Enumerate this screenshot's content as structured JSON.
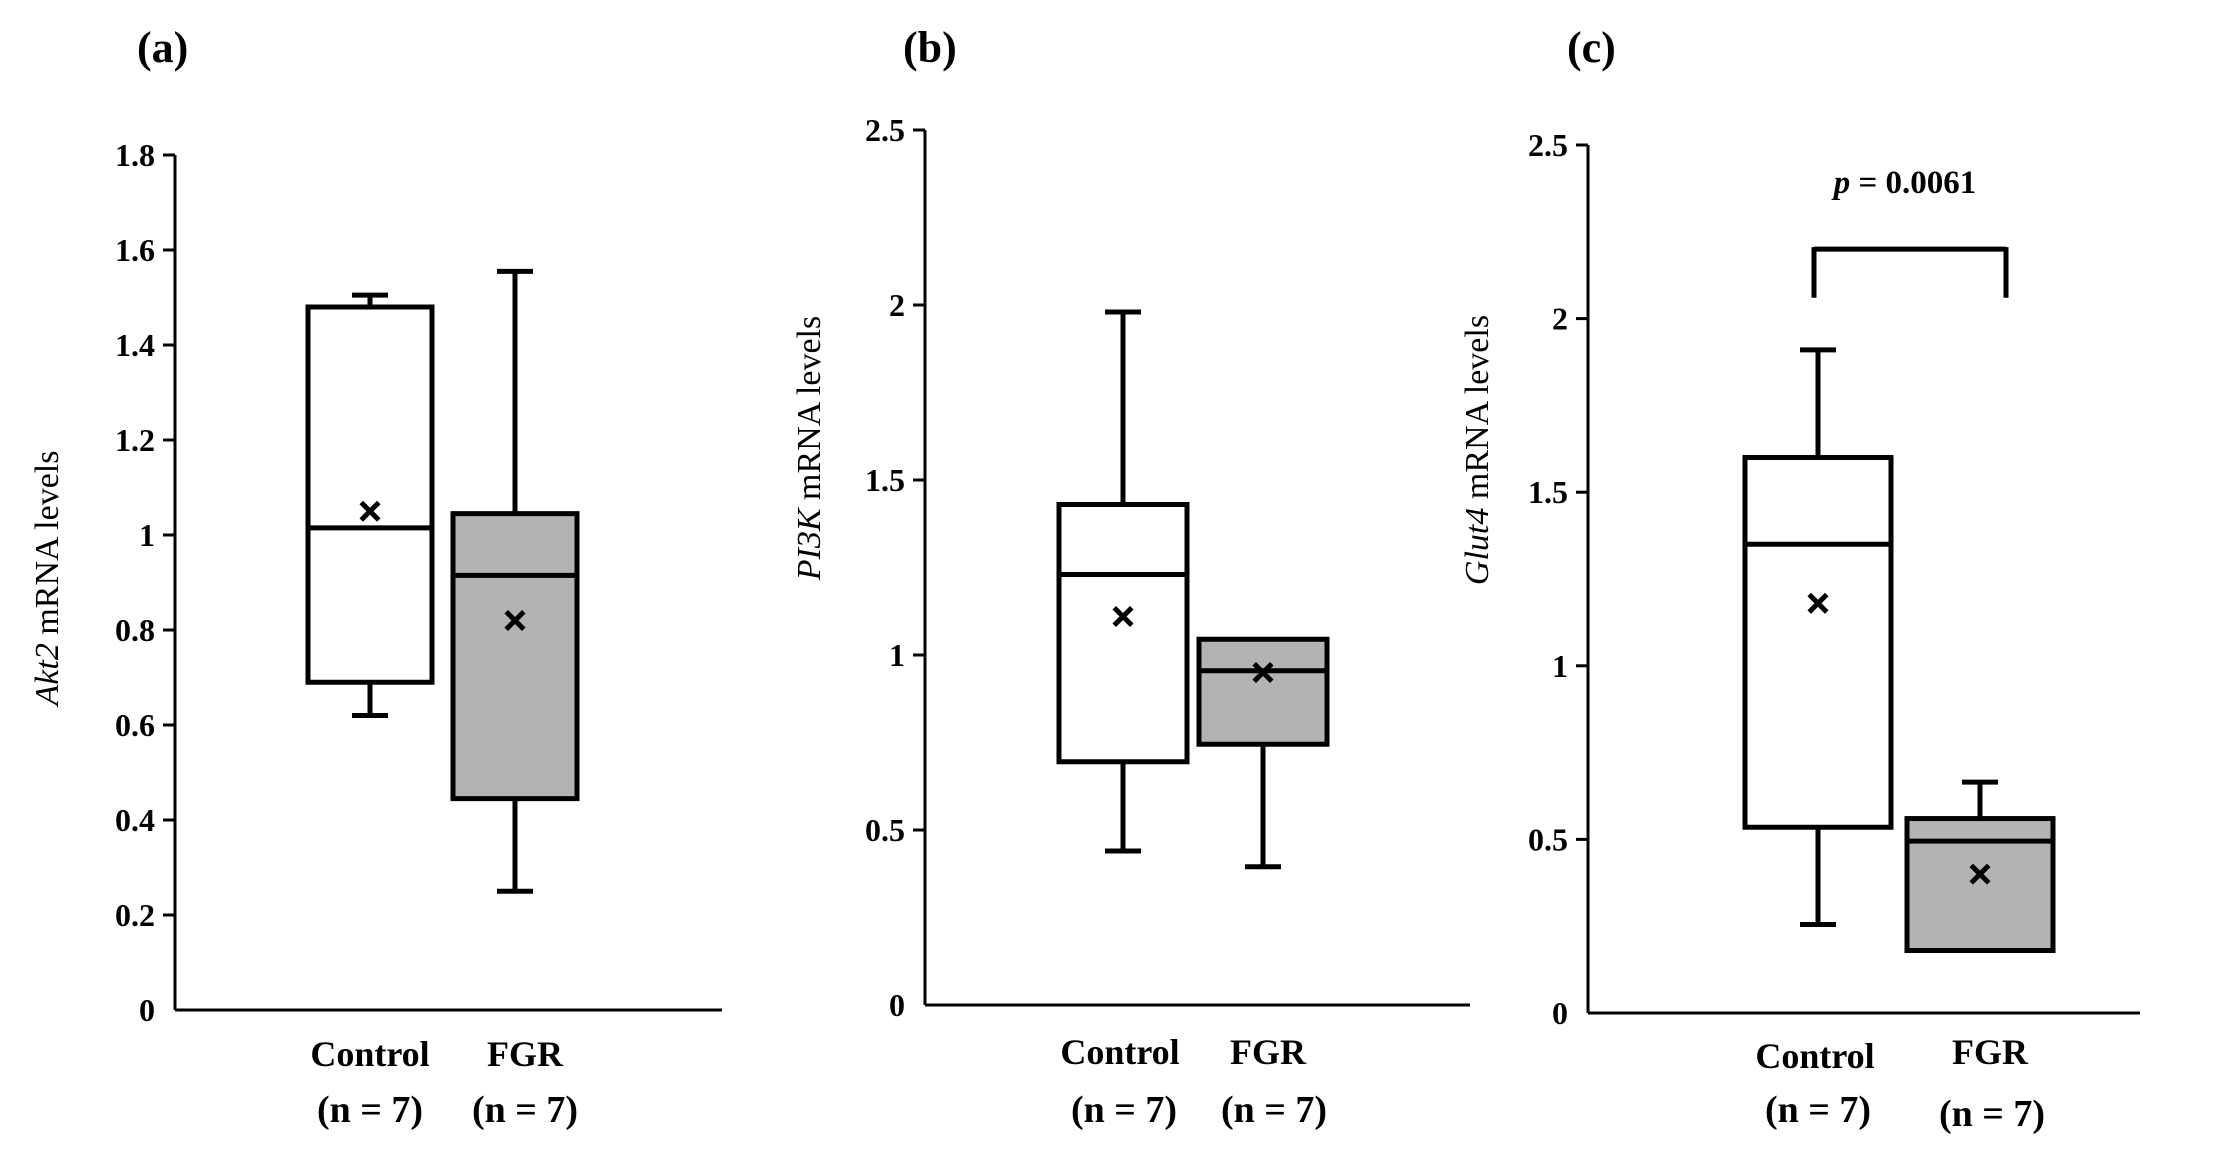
{
  "chart_data": [
    {
      "type": "box",
      "panel_label": "(a)",
      "ylabel_gene": "Akt2",
      "ylabel_rest": " mRNA levels",
      "ylim": [
        0,
        1.8
      ],
      "yticks": [
        0,
        0.2,
        0.4,
        0.6,
        0.8,
        1,
        1.2,
        1.4,
        1.6,
        1.8
      ],
      "ytick_labels": [
        "0",
        "0.2",
        "0.4",
        "0.6",
        "0.8",
        "1",
        "1.2",
        "1.4",
        "1.6",
        "1.8"
      ],
      "groups": [
        {
          "name": "Control",
          "n_label": "(n = 7)",
          "fill": "#ffffff",
          "min": 0.62,
          "q1": 0.69,
          "median": 1.015,
          "q3": 1.48,
          "max": 1.505,
          "mean": 1.05
        },
        {
          "name": "FGR",
          "n_label": "(n = 7)",
          "fill": "#b3b3b3",
          "min": 0.25,
          "q1": 0.445,
          "median": 0.915,
          "q3": 1.045,
          "max": 1.555,
          "mean": 0.82
        }
      ]
    },
    {
      "type": "box",
      "panel_label": "(b)",
      "ylabel_gene": "PI3K",
      "ylabel_rest": " mRNA levels",
      "ylim": [
        0,
        2.5
      ],
      "yticks": [
        0,
        0.5,
        1,
        1.5,
        2,
        2.5
      ],
      "ytick_labels": [
        "0",
        "0.5",
        "1",
        "1.5",
        "2",
        "2.5"
      ],
      "groups": [
        {
          "name": "Control",
          "n_label": "(n = 7)",
          "fill": "#ffffff",
          "min": 0.44,
          "q1": 0.695,
          "median": 1.23,
          "q3": 1.43,
          "max": 1.98,
          "mean": 1.11
        },
        {
          "name": "FGR",
          "n_label": "(n = 7)",
          "fill": "#b3b3b3",
          "min": 0.395,
          "q1": 0.745,
          "median": 0.955,
          "q3": 1.045,
          "max": 1.045,
          "mean": 0.95
        }
      ]
    },
    {
      "type": "box",
      "panel_label": "(c)",
      "ylabel_gene": "Glut4",
      "ylabel_rest": " mRNA levels",
      "ylim": [
        0,
        2.5
      ],
      "yticks": [
        0,
        0.5,
        1,
        1.5,
        2,
        2.5
      ],
      "ytick_labels": [
        "0",
        "0.5",
        "1",
        "1.5",
        "2",
        "2.5"
      ],
      "groups": [
        {
          "name": "Control",
          "n_label": "(n = 7)",
          "fill": "#ffffff",
          "min": 0.255,
          "q1": 0.535,
          "median": 1.35,
          "q3": 1.6,
          "max": 1.91,
          "mean": 1.18
        },
        {
          "name": "FGR",
          "n_label": "(n = 7)",
          "fill": "#b3b3b3",
          "min": 0.18,
          "q1": 0.18,
          "median": 0.495,
          "q3": 0.56,
          "max": 0.665,
          "mean": 0.4
        }
      ],
      "annotation": {
        "p_symbol": "p",
        "p_rest": " = 0.0061",
        "bracket_value": 2.2,
        "bracket_drop_value": 2.06
      }
    }
  ]
}
